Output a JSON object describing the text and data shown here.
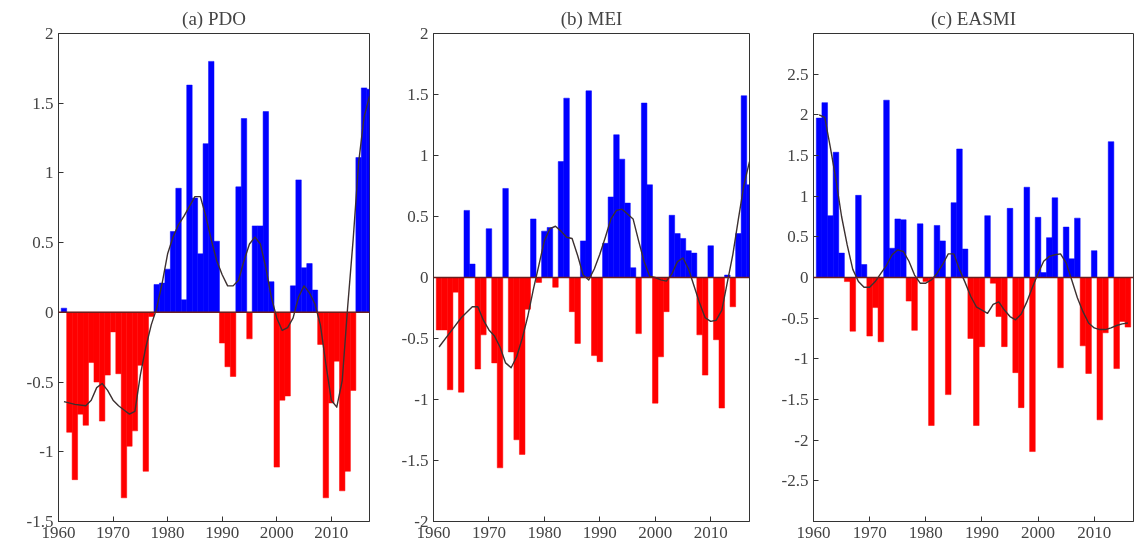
{
  "chart_data": [
    {
      "type": "bar",
      "title": "(a) PDO",
      "x": [
        1961,
        1962,
        1963,
        1964,
        1965,
        1966,
        1967,
        1968,
        1969,
        1970,
        1971,
        1972,
        1973,
        1974,
        1975,
        1976,
        1977,
        1978,
        1979,
        1980,
        1981,
        1982,
        1983,
        1984,
        1985,
        1986,
        1987,
        1988,
        1989,
        1990,
        1991,
        1992,
        1993,
        1994,
        1995,
        1996,
        1997,
        1998,
        1999,
        2000,
        2001,
        2002,
        2003,
        2004,
        2005,
        2006,
        2007,
        2008,
        2009,
        2010,
        2011,
        2012,
        2013,
        2014,
        2015,
        2016,
        2017
      ],
      "series": [
        {
          "values": [
            0.03,
            -0.86,
            -1.2,
            -0.73,
            -0.81,
            -0.36,
            -0.5,
            -0.78,
            -0.45,
            -0.14,
            -0.44,
            -1.33,
            -0.96,
            -0.85,
            -0.38,
            -1.14,
            -0.03,
            0.2,
            0.21,
            0.31,
            0.58,
            0.89,
            0.09,
            1.63,
            0.82,
            0.42,
            1.21,
            1.8,
            0.51,
            -0.22,
            -0.39,
            -0.46,
            0.9,
            1.39,
            -0.19,
            0.62,
            0.62,
            1.44,
            0.22,
            -1.11,
            -0.63,
            -0.6,
            0.19,
            0.95,
            0.32,
            0.35,
            0.16,
            -0.23,
            -1.33,
            -0.65,
            -0.35,
            -1.28,
            -1.14,
            -0.56,
            1.11,
            1.61,
            1.6
          ],
          "colors": [
            "#0000ff",
            "#ff0000",
            "#ff0000",
            "#ff0000",
            "#ff0000",
            "#ff0000",
            "#ff0000",
            "#ff0000",
            "#ff0000",
            "#ff0000",
            "#ff0000",
            "#ff0000",
            "#ff0000",
            "#ff0000",
            "#ff0000",
            "#ff0000",
            "#ff0000",
            "#0000ff",
            "#0000ff",
            "#0000ff",
            "#0000ff",
            "#0000ff",
            "#0000ff",
            "#0000ff",
            "#0000ff",
            "#0000ff",
            "#0000ff",
            "#0000ff",
            "#0000ff",
            "#ff0000",
            "#ff0000",
            "#ff0000",
            "#0000ff",
            "#0000ff",
            "#ff0000",
            "#0000ff",
            "#0000ff",
            "#0000ff",
            "#0000ff",
            "#ff0000",
            "#ff0000",
            "#ff0000",
            "#0000ff",
            "#0000ff",
            "#0000ff",
            "#0000ff",
            "#0000ff",
            "#ff0000",
            "#ff0000",
            "#ff0000",
            "#ff0000",
            "#ff0000",
            "#ff0000",
            "#ff0000",
            "#0000ff",
            "#0000ff",
            "#0000ff"
          ]
        },
        {
          "type": "line",
          "color": "#3c3030",
          "x": [
            1961,
            1963,
            1965,
            1966,
            1967,
            1968,
            1969,
            1970,
            1971,
            1972,
            1973,
            1974,
            1975,
            1976,
            1977,
            1978,
            1979,
            1980,
            1981,
            1982,
            1983,
            1984,
            1985,
            1986,
            1987,
            1988,
            1989,
            1990,
            1991,
            1992,
            1993,
            1994,
            1995,
            1996,
            1997,
            1998,
            1999,
            2000,
            2001,
            2002,
            2003,
            2004,
            2005,
            2006,
            2007,
            2008,
            2009,
            2010,
            2011,
            2012,
            2013,
            2014,
            2015,
            2016,
            2017
          ],
          "values": [
            -0.64,
            -0.66,
            -0.67,
            -0.63,
            -0.54,
            -0.51,
            -0.56,
            -0.63,
            -0.67,
            -0.7,
            -0.73,
            -0.71,
            -0.45,
            -0.25,
            -0.09,
            0.03,
            0.21,
            0.42,
            0.54,
            0.63,
            0.69,
            0.76,
            0.83,
            0.83,
            0.69,
            0.52,
            0.37,
            0.27,
            0.19,
            0.19,
            0.23,
            0.37,
            0.49,
            0.54,
            0.49,
            0.32,
            0.11,
            -0.04,
            -0.13,
            -0.11,
            -0.04,
            0.11,
            0.19,
            0.14,
            0.06,
            -0.09,
            -0.37,
            -0.63,
            -0.68,
            -0.49,
            0.04,
            0.52,
            1.07,
            1.4,
            1.55
          ]
        }
      ],
      "xlim": [
        1960,
        2017
      ],
      "xticks": [
        1960,
        1970,
        1980,
        1990,
        2000,
        2010
      ],
      "ylim": [
        -1.5,
        2
      ],
      "yticks": [
        -1.5,
        -1,
        -0.5,
        0,
        0.5,
        1,
        1.5,
        2
      ],
      "ref_lines": [
        {
          "axis": "y",
          "value": 0,
          "color": "#6b1f1f"
        }
      ]
    },
    {
      "type": "bar",
      "title": "(b) MEI",
      "x": [
        1961,
        1962,
        1963,
        1964,
        1965,
        1966,
        1967,
        1968,
        1969,
        1970,
        1971,
        1972,
        1973,
        1974,
        1975,
        1976,
        1977,
        1978,
        1979,
        1980,
        1981,
        1982,
        1983,
        1984,
        1985,
        1986,
        1987,
        1988,
        1989,
        1990,
        1991,
        1992,
        1993,
        1994,
        1995,
        1996,
        1997,
        1998,
        1999,
        2000,
        2001,
        2002,
        2003,
        2004,
        2005,
        2006,
        2007,
        2008,
        2009,
        2010,
        2011,
        2012,
        2013,
        2014,
        2015,
        2016,
        2017
      ],
      "series": [
        {
          "values": [
            -0.43,
            -0.43,
            -0.92,
            -0.12,
            -0.94,
            0.55,
            0.11,
            -0.75,
            -0.47,
            0.4,
            -0.7,
            -1.56,
            0.73,
            -0.61,
            -1.33,
            -1.45,
            -0.26,
            0.48,
            -0.04,
            0.38,
            0.41,
            -0.08,
            0.95,
            1.47,
            -0.28,
            -0.54,
            0.3,
            1.53,
            -0.64,
            -0.69,
            0.28,
            0.66,
            1.17,
            0.97,
            0.61,
            0.08,
            -0.46,
            1.43,
            0.76,
            -1.03,
            -0.65,
            -0.28,
            0.51,
            0.36,
            0.32,
            0.22,
            0.2,
            -0.47,
            -0.8,
            0.26,
            -0.51,
            -1.07,
            0.02,
            -0.24,
            0.36,
            1.49,
            0.76
          ],
          "colors": [
            "#ff0000",
            "#ff0000",
            "#ff0000",
            "#ff0000",
            "#ff0000",
            "#0000ff",
            "#0000ff",
            "#ff0000",
            "#ff0000",
            "#0000ff",
            "#ff0000",
            "#ff0000",
            "#0000ff",
            "#ff0000",
            "#ff0000",
            "#ff0000",
            "#ff0000",
            "#0000ff",
            "#ff0000",
            "#0000ff",
            "#0000ff",
            "#ff0000",
            "#0000ff",
            "#0000ff",
            "#ff0000",
            "#ff0000",
            "#0000ff",
            "#0000ff",
            "#ff0000",
            "#ff0000",
            "#0000ff",
            "#0000ff",
            "#0000ff",
            "#0000ff",
            "#0000ff",
            "#0000ff",
            "#ff0000",
            "#0000ff",
            "#0000ff",
            "#ff0000",
            "#ff0000",
            "#ff0000",
            "#0000ff",
            "#0000ff",
            "#0000ff",
            "#0000ff",
            "#0000ff",
            "#ff0000",
            "#ff0000",
            "#0000ff",
            "#ff0000",
            "#ff0000",
            "#0000ff",
            "#ff0000",
            "#0000ff",
            "#0000ff",
            "#0000ff"
          ]
        },
        {
          "type": "line",
          "color": "#3c3030",
          "x": [
            1961,
            1963,
            1965,
            1967,
            1968,
            1969,
            1970,
            1971,
            1972,
            1973,
            1974,
            1975,
            1976,
            1977,
            1978,
            1979,
            1980,
            1981,
            1982,
            1983,
            1984,
            1985,
            1986,
            1987,
            1988,
            1989,
            1990,
            1991,
            1992,
            1993,
            1994,
            1995,
            1996,
            1997,
            1998,
            1999,
            2000,
            2001,
            2002,
            2003,
            2004,
            2005,
            2006,
            2007,
            2008,
            2009,
            2010,
            2011,
            2012,
            2013,
            2014,
            2015,
            2016,
            2017
          ],
          "values": [
            -0.57,
            -0.45,
            -0.33,
            -0.24,
            -0.24,
            -0.35,
            -0.43,
            -0.48,
            -0.57,
            -0.7,
            -0.74,
            -0.65,
            -0.5,
            -0.32,
            -0.1,
            0.1,
            0.3,
            0.4,
            0.42,
            0.38,
            0.33,
            0.32,
            0.18,
            0.02,
            -0.02,
            0.07,
            0.19,
            0.33,
            0.48,
            0.55,
            0.56,
            0.52,
            0.48,
            0.3,
            0.13,
            0.01,
            0.0,
            -0.02,
            -0.03,
            0.03,
            0.13,
            0.16,
            0.07,
            -0.07,
            -0.21,
            -0.33,
            -0.36,
            -0.35,
            -0.27,
            -0.04,
            0.19,
            0.48,
            0.76,
            0.95
          ]
        }
      ],
      "xlim": [
        1960,
        2017
      ],
      "xticks": [
        1960,
        1970,
        1980,
        1990,
        2000,
        2010
      ],
      "ylim": [
        -2,
        2
      ],
      "yticks": [
        -2,
        -1.5,
        -1,
        -0.5,
        0,
        0.5,
        1,
        1.5,
        2
      ],
      "ref_lines": [
        {
          "axis": "y",
          "value": 0,
          "color": "#6b1f1f"
        }
      ]
    },
    {
      "type": "bar",
      "title": "(c) EASMI",
      "x": [
        1961,
        1962,
        1963,
        1964,
        1965,
        1966,
        1967,
        1968,
        1969,
        1970,
        1971,
        1972,
        1973,
        1974,
        1975,
        1976,
        1977,
        1978,
        1979,
        1980,
        1981,
        1982,
        1983,
        1984,
        1985,
        1986,
        1987,
        1988,
        1989,
        1990,
        1991,
        1992,
        1993,
        1994,
        1995,
        1996,
        1997,
        1998,
        1999,
        2000,
        2001,
        2002,
        2003,
        2004,
        2005,
        2006,
        2007,
        2008,
        2009,
        2010,
        2011,
        2012,
        2013,
        2014,
        2015,
        2016
      ],
      "series": [
        {
          "values": [
            1.96,
            2.15,
            0.76,
            1.54,
            0.3,
            -0.05,
            -0.66,
            1.01,
            0.16,
            -0.72,
            -0.37,
            -0.79,
            2.18,
            0.36,
            0.72,
            0.71,
            -0.29,
            -0.65,
            0.66,
            -0.05,
            -1.82,
            0.64,
            0.45,
            -1.44,
            0.92,
            1.58,
            0.35,
            -0.75,
            -1.82,
            -0.85,
            0.76,
            -0.07,
            -0.48,
            -0.85,
            0.85,
            -1.17,
            -1.6,
            1.11,
            -2.14,
            0.74,
            0.06,
            0.49,
            0.98,
            -1.11,
            0.62,
            0.23,
            0.73,
            -0.84,
            -1.18,
            0.33,
            -1.75,
            -0.68,
            1.67,
            -1.12,
            -0.54,
            -0.61
          ],
          "colors": [
            "#0000ff",
            "#0000ff",
            "#0000ff",
            "#0000ff",
            "#0000ff",
            "#ff0000",
            "#ff0000",
            "#0000ff",
            "#0000ff",
            "#ff0000",
            "#ff0000",
            "#ff0000",
            "#0000ff",
            "#0000ff",
            "#0000ff",
            "#0000ff",
            "#ff0000",
            "#ff0000",
            "#0000ff",
            "#ff0000",
            "#ff0000",
            "#0000ff",
            "#0000ff",
            "#ff0000",
            "#0000ff",
            "#0000ff",
            "#0000ff",
            "#ff0000",
            "#ff0000",
            "#ff0000",
            "#0000ff",
            "#ff0000",
            "#ff0000",
            "#ff0000",
            "#0000ff",
            "#ff0000",
            "#ff0000",
            "#0000ff",
            "#ff0000",
            "#0000ff",
            "#0000ff",
            "#0000ff",
            "#0000ff",
            "#ff0000",
            "#0000ff",
            "#0000ff",
            "#0000ff",
            "#ff0000",
            "#ff0000",
            "#0000ff",
            "#ff0000",
            "#ff0000",
            "#0000ff",
            "#ff0000",
            "#ff0000",
            "#ff0000"
          ]
        },
        {
          "type": "line",
          "color": "#3c3030",
          "values": [
            2.0,
            1.97,
            1.6,
            1.2,
            0.75,
            0.4,
            0.1,
            -0.05,
            -0.12,
            -0.12,
            -0.05,
            0.05,
            0.15,
            0.28,
            0.34,
            0.32,
            0.2,
            0.03,
            -0.07,
            -0.07,
            -0.03,
            0.05,
            0.16,
            0.29,
            0.29,
            0.1,
            -0.06,
            -0.23,
            -0.36,
            -0.4,
            -0.44,
            -0.33,
            -0.3,
            -0.4,
            -0.48,
            -0.52,
            -0.45,
            -0.3,
            -0.12,
            0.05,
            0.2,
            0.26,
            0.28,
            0.29,
            0.18,
            -0.03,
            -0.25,
            -0.42,
            -0.56,
            -0.62,
            -0.64,
            -0.64,
            -0.62,
            -0.59,
            -0.57,
            -0.56
          ]
        }
      ],
      "xlim": [
        1960,
        2017
      ],
      "xticks": [
        1960,
        1970,
        1980,
        1990,
        2000,
        2010
      ],
      "ylim": [
        -3,
        3
      ],
      "yticks": [
        -2.5,
        -2,
        -1.5,
        -1,
        -0.5,
        0,
        0.5,
        1,
        1.5,
        2,
        2.5
      ],
      "ref_lines": [
        {
          "axis": "y",
          "value": 0,
          "color": "#6b1f1f"
        }
      ]
    }
  ]
}
